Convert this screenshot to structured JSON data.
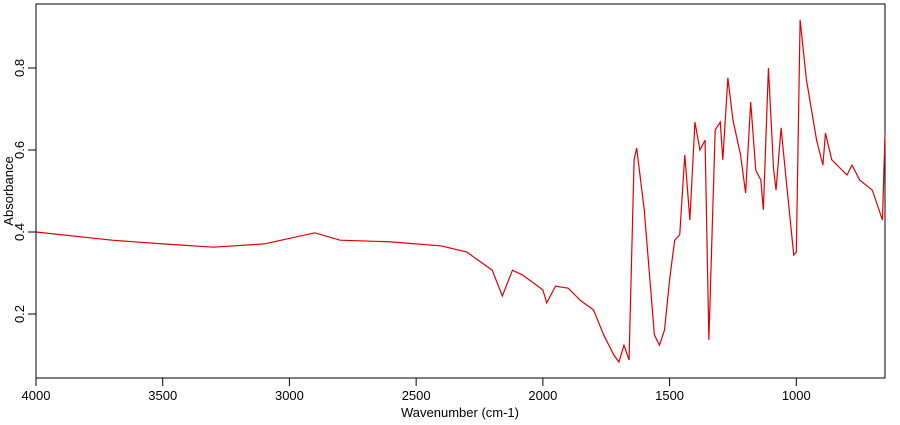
{
  "chart_data": {
    "type": "line",
    "x_label": "Wavenumber (cm-1)",
    "y_label": "Absorbance",
    "x": [
      4000,
      3700,
      3500,
      3300,
      3100,
      2900,
      2800,
      2600,
      2400,
      2300,
      2200,
      2160,
      2120,
      2080,
      2000,
      1985,
      1950,
      1900,
      1850,
      1800,
      1760,
      1720,
      1700,
      1680,
      1660,
      1640,
      1630,
      1600,
      1560,
      1540,
      1520,
      1500,
      1480,
      1460,
      1440,
      1420,
      1400,
      1380,
      1360,
      1345,
      1320,
      1300,
      1290,
      1270,
      1250,
      1220,
      1200,
      1180,
      1160,
      1140,
      1130,
      1110,
      1090,
      1080,
      1060,
      1040,
      1010,
      1000,
      985,
      960,
      920,
      895,
      885,
      860,
      800,
      780,
      750,
      700,
      660,
      650
    ],
    "values": [
      0.4,
      0.38,
      0.371,
      0.363,
      0.371,
      0.398,
      0.38,
      0.376,
      0.366,
      0.351,
      0.307,
      0.244,
      0.307,
      0.295,
      0.259,
      0.227,
      0.268,
      0.263,
      0.232,
      0.21,
      0.149,
      0.1,
      0.083,
      0.124,
      0.088,
      0.576,
      0.605,
      0.454,
      0.149,
      0.124,
      0.161,
      0.283,
      0.38,
      0.393,
      0.588,
      0.429,
      0.668,
      0.6,
      0.624,
      0.137,
      0.649,
      0.668,
      0.576,
      0.776,
      0.673,
      0.588,
      0.495,
      0.717,
      0.551,
      0.527,
      0.454,
      0.8,
      0.556,
      0.502,
      0.654,
      0.527,
      0.344,
      0.351,
      0.917,
      0.771,
      0.624,
      0.563,
      0.641,
      0.576,
      0.539,
      0.563,
      0.527,
      0.502,
      0.429,
      0.641
    ],
    "color": "#e00000",
    "xlim": [
      4000,
      650
    ],
    "ylim": [
      0.044,
      0.956
    ],
    "xticks": [
      4000,
      3500,
      3000,
      2500,
      2000,
      1500,
      1000
    ],
    "yticks": [
      0.2,
      0.4,
      0.6,
      0.8
    ]
  }
}
